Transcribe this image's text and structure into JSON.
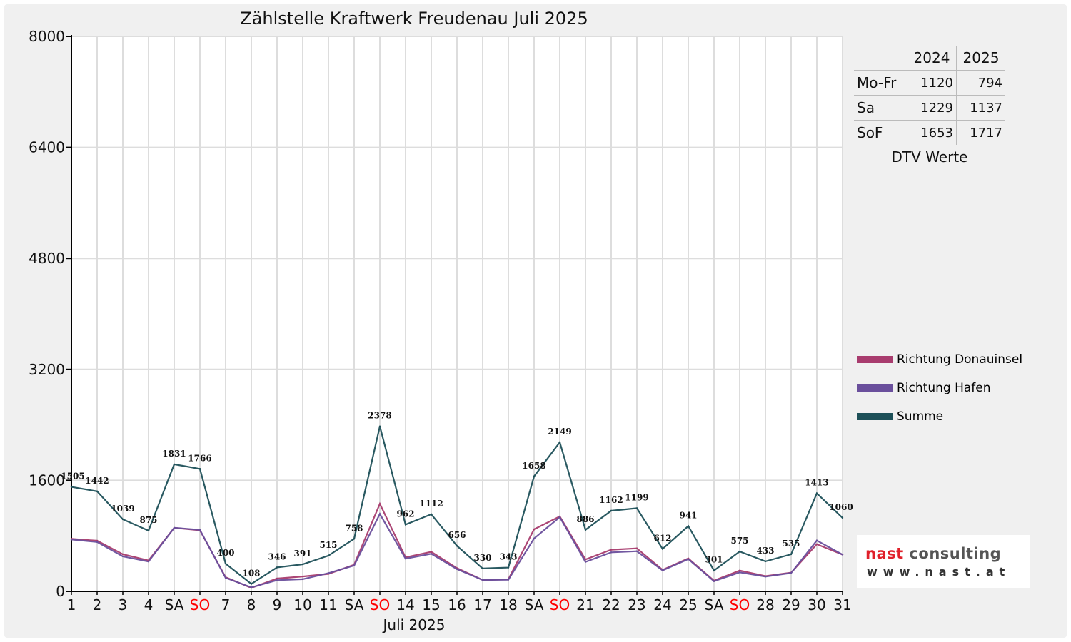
{
  "chart_data": {
    "type": "line",
    "title": "Zählstelle Kraftwerk Freudenau Juli 2025",
    "xlabel": "Juli 2025",
    "ylabel": "",
    "ylim": [
      0,
      8000
    ],
    "yticks": [
      0,
      1600,
      3200,
      4800,
      6400,
      8000
    ],
    "grid": true,
    "legend_position": "right",
    "categories": [
      "1",
      "2",
      "3",
      "4",
      "SA",
      "SO",
      "7",
      "8",
      "9",
      "10",
      "11",
      "SA",
      "SO",
      "14",
      "15",
      "16",
      "17",
      "18",
      "SA",
      "SO",
      "21",
      "22",
      "23",
      "24",
      "25",
      "SA",
      "SO",
      "28",
      "29",
      "30",
      "31"
    ],
    "highlight_categories": [
      5,
      12,
      19,
      26
    ],
    "series": [
      {
        "name": "Richtung Donauinsel",
        "color": "#a83c6e",
        "values": [
          757,
          730,
          535,
          445,
          915,
          880,
          205,
          50,
          185,
          215,
          252,
          385,
          1262,
          490,
          570,
          335,
          165,
          175,
          895,
          1080,
          460,
          600,
          620,
          310,
          475,
          155,
          300,
          220,
          270,
          680,
          530
        ]
      },
      {
        "name": "Richtung Hafen",
        "color": "#6a4f9c",
        "values": [
          748,
          712,
          504,
          430,
          916,
          886,
          195,
          58,
          161,
          176,
          263,
          373,
          1116,
          472,
          542,
          321,
          165,
          168,
          763,
          1069,
          426,
          562,
          579,
          302,
          466,
          146,
          275,
          213,
          265,
          733,
          530
        ]
      },
      {
        "name": "Summe",
        "color": "#1d5058",
        "values": [
          1505,
          1442,
          1039,
          875,
          1831,
          1766,
          400,
          108,
          346,
          391,
          515,
          758,
          2378,
          962,
          1112,
          656,
          330,
          343,
          1658,
          2149,
          886,
          1162,
          1199,
          612,
          941,
          301,
          575,
          433,
          535,
          1413,
          1060
        ]
      }
    ],
    "data_labels": [
      "1505",
      "1442",
      "1039",
      "875",
      "1831",
      "1766",
      "400",
      "108",
      "346",
      "391",
      "515",
      "758",
      "2378",
      "962",
      "1112",
      "656",
      "330",
      "343",
      "1658",
      "2149",
      "886",
      "1162",
      "1199",
      "612",
      "941",
      "301",
      "575",
      "433",
      "535",
      "1413",
      "1060"
    ]
  },
  "dtv": {
    "headers": [
      "2024",
      "2025"
    ],
    "rows": [
      {
        "label": "Mo-Fr",
        "v2024": "1120",
        "v2025": "794"
      },
      {
        "label": "Sa",
        "v2024": "1229",
        "v2025": "1137"
      },
      {
        "label": "SoF",
        "v2024": "1653",
        "v2025": "1717"
      }
    ],
    "caption": "DTV Werte"
  },
  "logo": {
    "name_a": "nast ",
    "name_b": "consulting",
    "url": "www.nast.at"
  },
  "colors": {
    "weekday_label": "#111111",
    "sunday_label": "#ff0000",
    "grid": "#dddddd",
    "axis": "#000000"
  }
}
